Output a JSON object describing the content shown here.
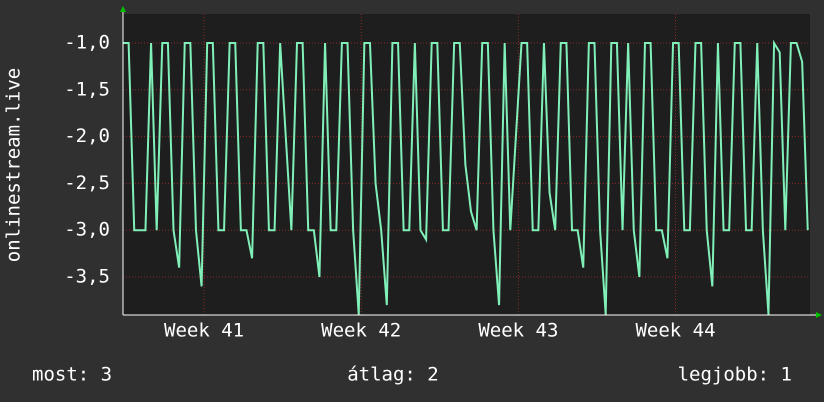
{
  "chart_data": {
    "type": "line",
    "y_label": "onlinestream.live",
    "summary": [
      "most: 3",
      "átlag: 2",
      "legjobb: 1"
    ],
    "xlim": [
      0,
      30.6
    ],
    "xticks": [
      {
        "value": 3.61,
        "label": "Week 41"
      },
      {
        "value": 10.61,
        "label": "Week 42"
      },
      {
        "value": 17.61,
        "label": "Week 43"
      },
      {
        "value": 24.61,
        "label": "Week 44"
      }
    ],
    "ylim": [
      -3.906,
      -0.69
    ],
    "yticks": [
      {
        "value": -1,
        "label": "-1,0"
      },
      {
        "value": -1.5,
        "label": "-1,5"
      },
      {
        "value": -2,
        "label": "-2,0"
      },
      {
        "value": -2.5,
        "label": "-2,5"
      },
      {
        "value": -3,
        "label": "-3,0"
      },
      {
        "value": -3.5,
        "label": "-3,5"
      }
    ],
    "grid": true,
    "x": [
      0,
      0.25,
      0.5,
      0.75,
      1,
      1.25,
      1.5,
      1.75,
      2,
      2.25,
      2.5,
      2.75,
      3,
      3.25,
      3.5,
      3.75,
      4,
      4.25,
      4.5,
      4.75,
      5,
      5.25,
      5.5,
      5.75,
      6,
      6.25,
      6.5,
      6.75,
      7,
      7.25,
      7.5,
      7.75,
      8,
      8.25,
      8.5,
      8.75,
      9,
      9.25,
      9.5,
      9.75,
      10,
      10.25,
      10.5,
      10.75,
      11,
      11.25,
      11.5,
      11.75,
      12,
      12.25,
      12.5,
      12.75,
      13,
      13.25,
      13.5,
      13.75,
      14,
      14.25,
      14.5,
      14.75,
      15,
      15.25,
      15.5,
      15.75,
      16,
      16.25,
      16.5,
      16.75,
      17,
      17.25,
      17.5,
      17.75,
      18,
      18.25,
      18.5,
      18.75,
      19,
      19.25,
      19.5,
      19.75,
      20,
      20.25,
      20.5,
      20.75,
      21,
      21.25,
      21.5,
      21.75,
      22,
      22.25,
      22.5,
      22.75,
      23,
      23.25,
      23.5,
      23.75,
      24,
      24.25,
      24.5,
      24.75,
      25,
      25.25,
      25.5,
      25.75,
      26,
      26.25,
      26.5,
      26.75,
      27,
      27.25,
      27.5,
      27.75,
      28,
      28.25,
      28.5,
      28.75,
      29,
      29.25,
      29.5,
      29.75,
      30,
      30.25,
      30.5
    ],
    "series": [
      {
        "color": "#80f0b8",
        "values": [
          -1,
          -1,
          -3,
          -3,
          -3,
          -1,
          -3,
          -1,
          -1,
          -3,
          -3.4,
          -1,
          -1,
          -3,
          -3.6,
          -1,
          -1,
          -3,
          -3,
          -1,
          -1,
          -3,
          -3,
          -3.3,
          -1,
          -1,
          -3,
          -3,
          -1,
          -2,
          -3,
          -1,
          -1,
          -3,
          -3,
          -3.5,
          -1,
          -3,
          -3,
          -1,
          -1,
          -3,
          -3.9,
          -1,
          -1,
          -2.5,
          -3,
          -3.8,
          -1,
          -1,
          -3,
          -3,
          -1,
          -3,
          -3.1,
          -1,
          -1,
          -3,
          -3,
          -1,
          -1,
          -2.3,
          -2.8,
          -3,
          -1,
          -1,
          -3,
          -3.8,
          -1,
          -3,
          -2,
          -1,
          -1,
          -3,
          -3,
          -1,
          -2.6,
          -3,
          -1,
          -1,
          -3,
          -3,
          -3.4,
          -1,
          -1,
          -3,
          -3.9,
          -1,
          -1,
          -3,
          -1,
          -3,
          -3.5,
          -1,
          -1,
          -3,
          -3,
          -3.3,
          -1,
          -1,
          -3,
          -3,
          -1,
          -1,
          -3,
          -3.6,
          -1,
          -3,
          -3,
          -1,
          -1,
          -3,
          -3,
          -1,
          -3,
          -3.9,
          -1,
          -1.1,
          -3,
          -1,
          -1,
          -1.2,
          -3
        ]
      }
    ]
  }
}
